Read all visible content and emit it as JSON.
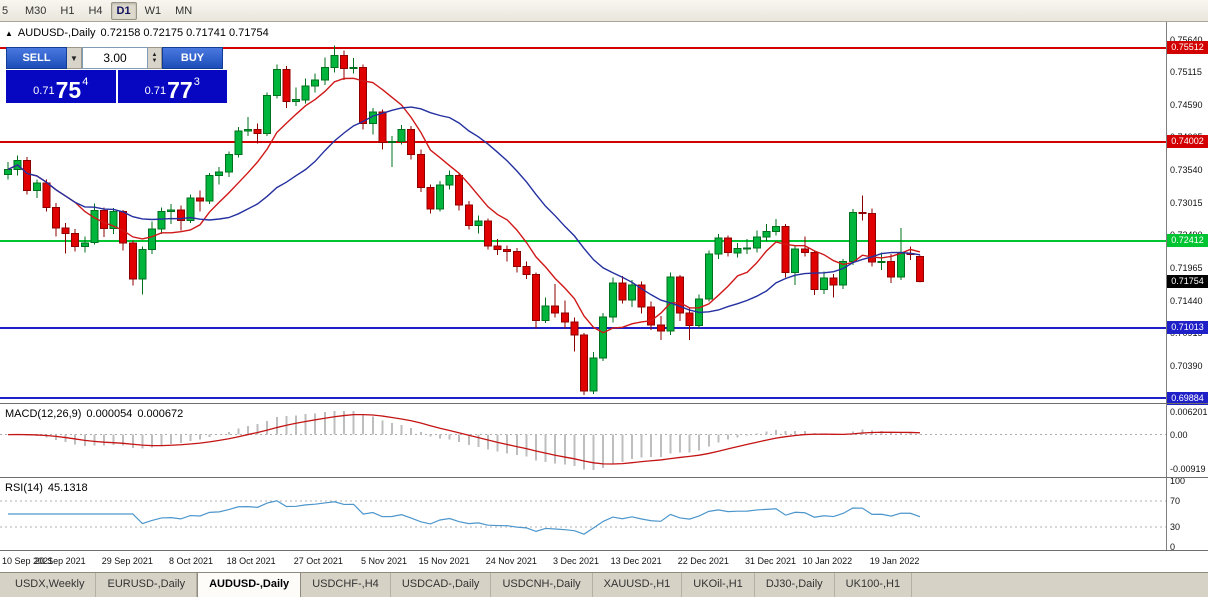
{
  "toolbar": {
    "periods": [
      "5",
      "M30",
      "H1",
      "H4",
      "D1",
      "W1",
      "MN"
    ],
    "active_period": "D1"
  },
  "window": {
    "title_symbol": "AUDUSD-,Daily",
    "title_ohlc": "0.72158 0.72175 0.71741 0.71754"
  },
  "trade_panel": {
    "sell_label": "SELL",
    "buy_label": "BUY",
    "volume": "3.00",
    "sell_price": {
      "small": "0.71",
      "big": "75",
      "sup": "4"
    },
    "buy_price": {
      "small": "0.71",
      "big": "77",
      "sup": "3"
    }
  },
  "chart_data": {
    "type": "candlestick",
    "symbol": "AUDUSD-,Daily",
    "ylim": [
      0.69804,
      0.7593
    ],
    "y_ticks": [
      "0.75640",
      "0.75115",
      "0.74590",
      "0.74065",
      "0.73540",
      "0.73015",
      "0.72490",
      "0.71965",
      "0.71440",
      "0.70915",
      "0.70390"
    ],
    "x_labels": [
      {
        "i": 0,
        "t": "10 Sep 2021"
      },
      {
        "i": 6,
        "t": "20 Sep 2021"
      },
      {
        "i": 13,
        "t": "29 Sep 2021"
      },
      {
        "i": 20,
        "t": "8 Oct 2021"
      },
      {
        "i": 26,
        "t": "18 Oct 2021"
      },
      {
        "i": 33,
        "t": "27 Oct 2021"
      },
      {
        "i": 40,
        "t": "5 Nov 2021"
      },
      {
        "i": 46,
        "t": "15 Nov 2021"
      },
      {
        "i": 53,
        "t": "24 Nov 2021"
      },
      {
        "i": 60,
        "t": "3 Dec 2021"
      },
      {
        "i": 66,
        "t": "13 Dec 2021"
      },
      {
        "i": 73,
        "t": "22 Dec 2021"
      },
      {
        "i": 80,
        "t": "31 Dec 2021"
      },
      {
        "i": 86,
        "t": "10 Jan 2022"
      },
      {
        "i": 93,
        "t": "19 Jan 2022"
      }
    ],
    "levels": [
      {
        "value": 0.75512,
        "label": "0.75512",
        "color": "#D20000",
        "width": 2
      },
      {
        "value": 0.74002,
        "label": "0.74002",
        "color": "#D20000",
        "width": 2
      },
      {
        "value": 0.72412,
        "label": "0.72412",
        "color": "#00C432",
        "width": 2
      },
      {
        "value": 0.71013,
        "label": "0.71013",
        "color": "#2020C8",
        "width": 2
      },
      {
        "value": 0.69884,
        "label": "0.69884",
        "color": "#2020C8",
        "width": 2
      }
    ],
    "current_price": {
      "value": 0.71754,
      "label": "0.71754",
      "color": "#000000"
    },
    "moving_averages": [
      {
        "period": 8,
        "color": "#D01818"
      },
      {
        "period": 20,
        "color": "#2430A0"
      }
    ],
    "colors": {
      "up": "#00B53C",
      "up_border": "#00701E",
      "down": "#E10000",
      "down_border": "#8E0000",
      "macd_hist": "#BEBEBE",
      "macd_signal": "#C41414",
      "rsi_line": "#4C96CC"
    },
    "candles": [
      [
        0.7348,
        0.7368,
        0.734,
        0.7356
      ],
      [
        0.7356,
        0.7378,
        0.7346,
        0.737
      ],
      [
        0.737,
        0.7376,
        0.7316,
        0.7322
      ],
      [
        0.7322,
        0.734,
        0.731,
        0.7334
      ],
      [
        0.7334,
        0.734,
        0.7288,
        0.7295
      ],
      [
        0.7295,
        0.7302,
        0.7248,
        0.7262
      ],
      [
        0.7262,
        0.727,
        0.7221,
        0.7253
      ],
      [
        0.7253,
        0.726,
        0.7224,
        0.7232
      ],
      [
        0.7232,
        0.7248,
        0.7222,
        0.7238
      ],
      [
        0.7238,
        0.7301,
        0.7235,
        0.729
      ],
      [
        0.729,
        0.7295,
        0.7247,
        0.7261
      ],
      [
        0.7261,
        0.7294,
        0.7252,
        0.7288
      ],
      [
        0.7288,
        0.7291,
        0.7226,
        0.7238
      ],
      [
        0.7238,
        0.7242,
        0.7169,
        0.718
      ],
      [
        0.718,
        0.7232,
        0.7155,
        0.7227
      ],
      [
        0.7227,
        0.7272,
        0.722,
        0.726
      ],
      [
        0.726,
        0.7295,
        0.7252,
        0.7288
      ],
      [
        0.7288,
        0.73,
        0.7268,
        0.7291
      ],
      [
        0.7291,
        0.7298,
        0.7258,
        0.7274
      ],
      [
        0.7274,
        0.7316,
        0.727,
        0.731
      ],
      [
        0.731,
        0.7322,
        0.7288,
        0.7305
      ],
      [
        0.7305,
        0.735,
        0.73,
        0.7346
      ],
      [
        0.7346,
        0.736,
        0.7332,
        0.7352
      ],
      [
        0.7352,
        0.7385,
        0.7344,
        0.738
      ],
      [
        0.738,
        0.7424,
        0.7375,
        0.7418
      ],
      [
        0.7418,
        0.744,
        0.741,
        0.742
      ],
      [
        0.742,
        0.743,
        0.7398,
        0.7414
      ],
      [
        0.7414,
        0.748,
        0.741,
        0.7475
      ],
      [
        0.7475,
        0.7525,
        0.747,
        0.7517
      ],
      [
        0.7517,
        0.7522,
        0.7455,
        0.7465
      ],
      [
        0.7465,
        0.7488,
        0.7458,
        0.7468
      ],
      [
        0.7468,
        0.7502,
        0.7462,
        0.749
      ],
      [
        0.749,
        0.751,
        0.748,
        0.75
      ],
      [
        0.75,
        0.7536,
        0.7492,
        0.752
      ],
      [
        0.752,
        0.7555,
        0.7512,
        0.7539
      ],
      [
        0.7539,
        0.7547,
        0.75,
        0.7518
      ],
      [
        0.7518,
        0.7535,
        0.751,
        0.752
      ],
      [
        0.752,
        0.7525,
        0.742,
        0.743
      ],
      [
        0.743,
        0.7455,
        0.7412,
        0.7448
      ],
      [
        0.7448,
        0.7452,
        0.7388,
        0.7399
      ],
      [
        0.7399,
        0.741,
        0.736,
        0.7401
      ],
      [
        0.7401,
        0.7427,
        0.7396,
        0.742
      ],
      [
        0.742,
        0.7426,
        0.7372,
        0.738
      ],
      [
        0.738,
        0.7388,
        0.732,
        0.7327
      ],
      [
        0.7327,
        0.7332,
        0.7285,
        0.7292
      ],
      [
        0.7292,
        0.7337,
        0.7288,
        0.7331
      ],
      [
        0.7331,
        0.7354,
        0.7324,
        0.7346
      ],
      [
        0.7346,
        0.735,
        0.729,
        0.7299
      ],
      [
        0.7299,
        0.7305,
        0.7259,
        0.7266
      ],
      [
        0.7266,
        0.7282,
        0.7253,
        0.7273
      ],
      [
        0.7273,
        0.7277,
        0.7227,
        0.7233
      ],
      [
        0.7233,
        0.7244,
        0.7218,
        0.7227
      ],
      [
        0.7227,
        0.7234,
        0.7208,
        0.7224
      ],
      [
        0.7224,
        0.723,
        0.719,
        0.72
      ],
      [
        0.72,
        0.7208,
        0.718,
        0.7187
      ],
      [
        0.7187,
        0.719,
        0.71,
        0.7113
      ],
      [
        0.7113,
        0.715,
        0.7109,
        0.7136
      ],
      [
        0.7136,
        0.7172,
        0.7118,
        0.7125
      ],
      [
        0.7125,
        0.7145,
        0.71,
        0.7111
      ],
      [
        0.7111,
        0.7118,
        0.7063,
        0.709
      ],
      [
        0.709,
        0.7093,
        0.6993,
        0.7
      ],
      [
        0.7,
        0.7062,
        0.6995,
        0.7053
      ],
      [
        0.7053,
        0.7125,
        0.7048,
        0.7119
      ],
      [
        0.7119,
        0.7182,
        0.711,
        0.7173
      ],
      [
        0.7173,
        0.7185,
        0.714,
        0.7146
      ],
      [
        0.7146,
        0.7178,
        0.7135,
        0.717
      ],
      [
        0.717,
        0.7176,
        0.7124,
        0.7135
      ],
      [
        0.7135,
        0.7144,
        0.7098,
        0.7106
      ],
      [
        0.7106,
        0.712,
        0.7082,
        0.7096
      ],
      [
        0.7096,
        0.719,
        0.709,
        0.7183
      ],
      [
        0.7183,
        0.7186,
        0.7112,
        0.7125
      ],
      [
        0.7125,
        0.7133,
        0.7082,
        0.7105
      ],
      [
        0.7105,
        0.7155,
        0.71,
        0.7148
      ],
      [
        0.7148,
        0.7226,
        0.7144,
        0.722
      ],
      [
        0.722,
        0.7252,
        0.7212,
        0.7246
      ],
      [
        0.7246,
        0.725,
        0.7216,
        0.7222
      ],
      [
        0.7222,
        0.7238,
        0.7214,
        0.7229
      ],
      [
        0.7229,
        0.7244,
        0.722,
        0.723
      ],
      [
        0.723,
        0.7258,
        0.7222,
        0.7247
      ],
      [
        0.7247,
        0.7268,
        0.724,
        0.7256
      ],
      [
        0.7256,
        0.7276,
        0.725,
        0.7264
      ],
      [
        0.7264,
        0.7268,
        0.7182,
        0.719
      ],
      [
        0.719,
        0.7234,
        0.717,
        0.7228
      ],
      [
        0.7228,
        0.7248,
        0.7216,
        0.7222
      ],
      [
        0.7222,
        0.7226,
        0.7154,
        0.7163
      ],
      [
        0.7163,
        0.7192,
        0.7156,
        0.7181
      ],
      [
        0.7181,
        0.7188,
        0.715,
        0.717
      ],
      [
        0.717,
        0.7212,
        0.7164,
        0.7208
      ],
      [
        0.7208,
        0.7292,
        0.7202,
        0.7287
      ],
      [
        0.7287,
        0.7314,
        0.7274,
        0.7285
      ],
      [
        0.7285,
        0.7293,
        0.72,
        0.7207
      ],
      [
        0.7207,
        0.7222,
        0.7194,
        0.7208
      ],
      [
        0.7208,
        0.722,
        0.7173,
        0.7183
      ],
      [
        0.7183,
        0.7262,
        0.7178,
        0.7221
      ],
      [
        0.7221,
        0.7232,
        0.721,
        0.722
      ],
      [
        0.72158,
        0.72175,
        0.71741,
        0.71754
      ]
    ],
    "indicators": {
      "macd": {
        "label": "MACD(12,26,9)",
        "value_main": "0.000054",
        "value_signal": "0.000672",
        "params": [
          12,
          26,
          9
        ],
        "ticks": [
          "0.006201",
          "0.00",
          "-0.00919"
        ]
      },
      "rsi": {
        "label": "RSI(14)",
        "value": "45.1318",
        "period": 14,
        "ticks": [
          "100",
          "70",
          "30",
          "0"
        ],
        "tick_values": [
          100,
          70,
          30,
          0
        ],
        "levels": [
          70,
          30
        ]
      }
    }
  },
  "tabs": {
    "active_index": 2,
    "items": [
      {
        "label": "USDX,Weekly"
      },
      {
        "label": "EURUSD-,Daily"
      },
      {
        "label": "AUDUSD-,Daily"
      },
      {
        "label": "USDCHF-,H4"
      },
      {
        "label": "USDCAD-,Daily"
      },
      {
        "label": "USDCNH-,Daily"
      },
      {
        "label": "XAUUSD-,H1"
      },
      {
        "label": "UKOil-,H1"
      },
      {
        "label": "DJ30-,Daily"
      },
      {
        "label": "UK100-,H1"
      }
    ]
  }
}
